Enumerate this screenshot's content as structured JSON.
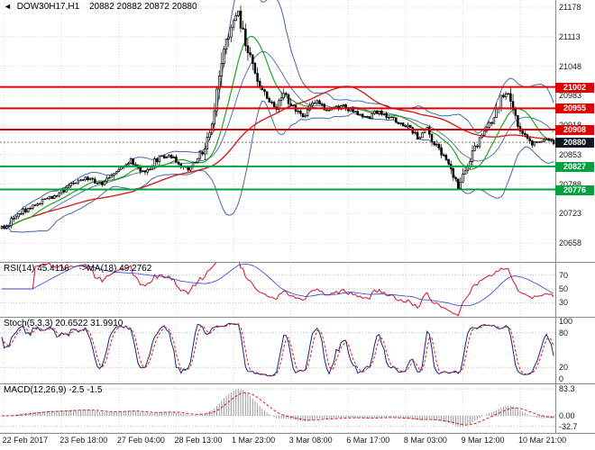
{
  "header": {
    "icon": "◄",
    "symbol_tf": "DOW30H17,H1",
    "quote_line": "20882 20882 20872 20880"
  },
  "colors": {
    "resistance": "#e00000",
    "support": "#00a13e",
    "current_badge": "#101522",
    "bollinger": "#4668a8",
    "ma_fast": "#1fa51f",
    "ma_slow": "#d42020",
    "rsi": "#cc1133",
    "rsi_ma": "#2b3fd6",
    "stoch_k": "#16257a",
    "stoch_d": "#d02020",
    "macd_hist": "#9a9a9a",
    "macd_signal": "#d02020",
    "grid": "#d6d6d6",
    "separator": "#8a8a8a"
  },
  "chart_data": {
    "type": "candlestick",
    "symbol": "DOW30H17",
    "timeframe": "H1",
    "quote": {
      "open": 20882,
      "high": 20882,
      "low": 20872,
      "close": 20880
    },
    "bars": 232,
    "price_axis": {
      "min": 20658,
      "max": 21178,
      "ticks": [
        21178,
        21113,
        21048,
        20983,
        20918,
        20853,
        20788,
        20723,
        20658
      ]
    },
    "levels": {
      "resistance": [
        21002,
        20955,
        20908
      ],
      "support": [
        20827,
        20776
      ],
      "current": 20880
    },
    "x_labels": [
      "22 Feb 2017",
      "23 Feb 18:00",
      "27 Feb 04:00",
      "28 Feb 13:00",
      "1 Mar 23:00",
      "3 Mar 08:00",
      "6 Mar 17:00",
      "8 Mar 03:00",
      "9 Mar 12:00",
      "10 Mar 21:00"
    ],
    "x_label_bars": [
      1,
      25,
      49,
      73,
      97,
      121,
      145,
      169,
      193,
      217
    ],
    "price_keypoints": [
      [
        0,
        20692
      ],
      [
        3,
        20700
      ],
      [
        6,
        20718
      ],
      [
        12,
        20738
      ],
      [
        18,
        20752
      ],
      [
        24,
        20768
      ],
      [
        30,
        20790
      ],
      [
        36,
        20802
      ],
      [
        42,
        20788
      ],
      [
        48,
        20820
      ],
      [
        54,
        20840
      ],
      [
        60,
        20812
      ],
      [
        66,
        20850
      ],
      [
        72,
        20846
      ],
      [
        78,
        20816
      ],
      [
        84,
        20860
      ],
      [
        88,
        20924
      ],
      [
        92,
        21064
      ],
      [
        96,
        21142
      ],
      [
        99,
        21164
      ],
      [
        103,
        21086
      ],
      [
        107,
        21018
      ],
      [
        111,
        20982
      ],
      [
        115,
        20952
      ],
      [
        118,
        20998
      ],
      [
        121,
        20962
      ],
      [
        126,
        20936
      ],
      [
        131,
        20970
      ],
      [
        137,
        20950
      ],
      [
        143,
        20960
      ],
      [
        148,
        20944
      ],
      [
        153,
        20934
      ],
      [
        158,
        20950
      ],
      [
        164,
        20930
      ],
      [
        169,
        20918
      ],
      [
        174,
        20892
      ],
      [
        178,
        20908
      ],
      [
        183,
        20860
      ],
      [
        187,
        20830
      ],
      [
        191,
        20780
      ],
      [
        194,
        20818
      ],
      [
        198,
        20870
      ],
      [
        202,
        20902
      ],
      [
        206,
        20936
      ],
      [
        209,
        20976
      ],
      [
        212,
        20992
      ],
      [
        215,
        20932
      ],
      [
        218,
        20896
      ],
      [
        222,
        20876
      ],
      [
        227,
        20886
      ],
      [
        231,
        20880
      ]
    ],
    "indicators": {
      "rsi": {
        "label": "RSI(14) 45.4116",
        "ma_label": "->MA(18) 49.2762",
        "period": 14,
        "ma_period": 18,
        "value": 45.4116,
        "ma_value": 49.2762,
        "levels": [
          70,
          50,
          30
        ]
      },
      "stoch": {
        "label": "Stoch(5,3,3) 20.6522 31.9910",
        "k": 20.6522,
        "d": 31.991,
        "levels": [
          100,
          80,
          20,
          0
        ],
        "dotted": [
          80,
          20
        ]
      },
      "macd": {
        "label": "MACD(12,26,9) -2.5 -1.5",
        "main": -2.5,
        "signal": -1.5,
        "axis_labels": [
          [
            "83.3",
            83.3
          ],
          [
            "0.00",
            0
          ],
          [
            "-32.7",
            -32.7
          ]
        ]
      }
    }
  }
}
